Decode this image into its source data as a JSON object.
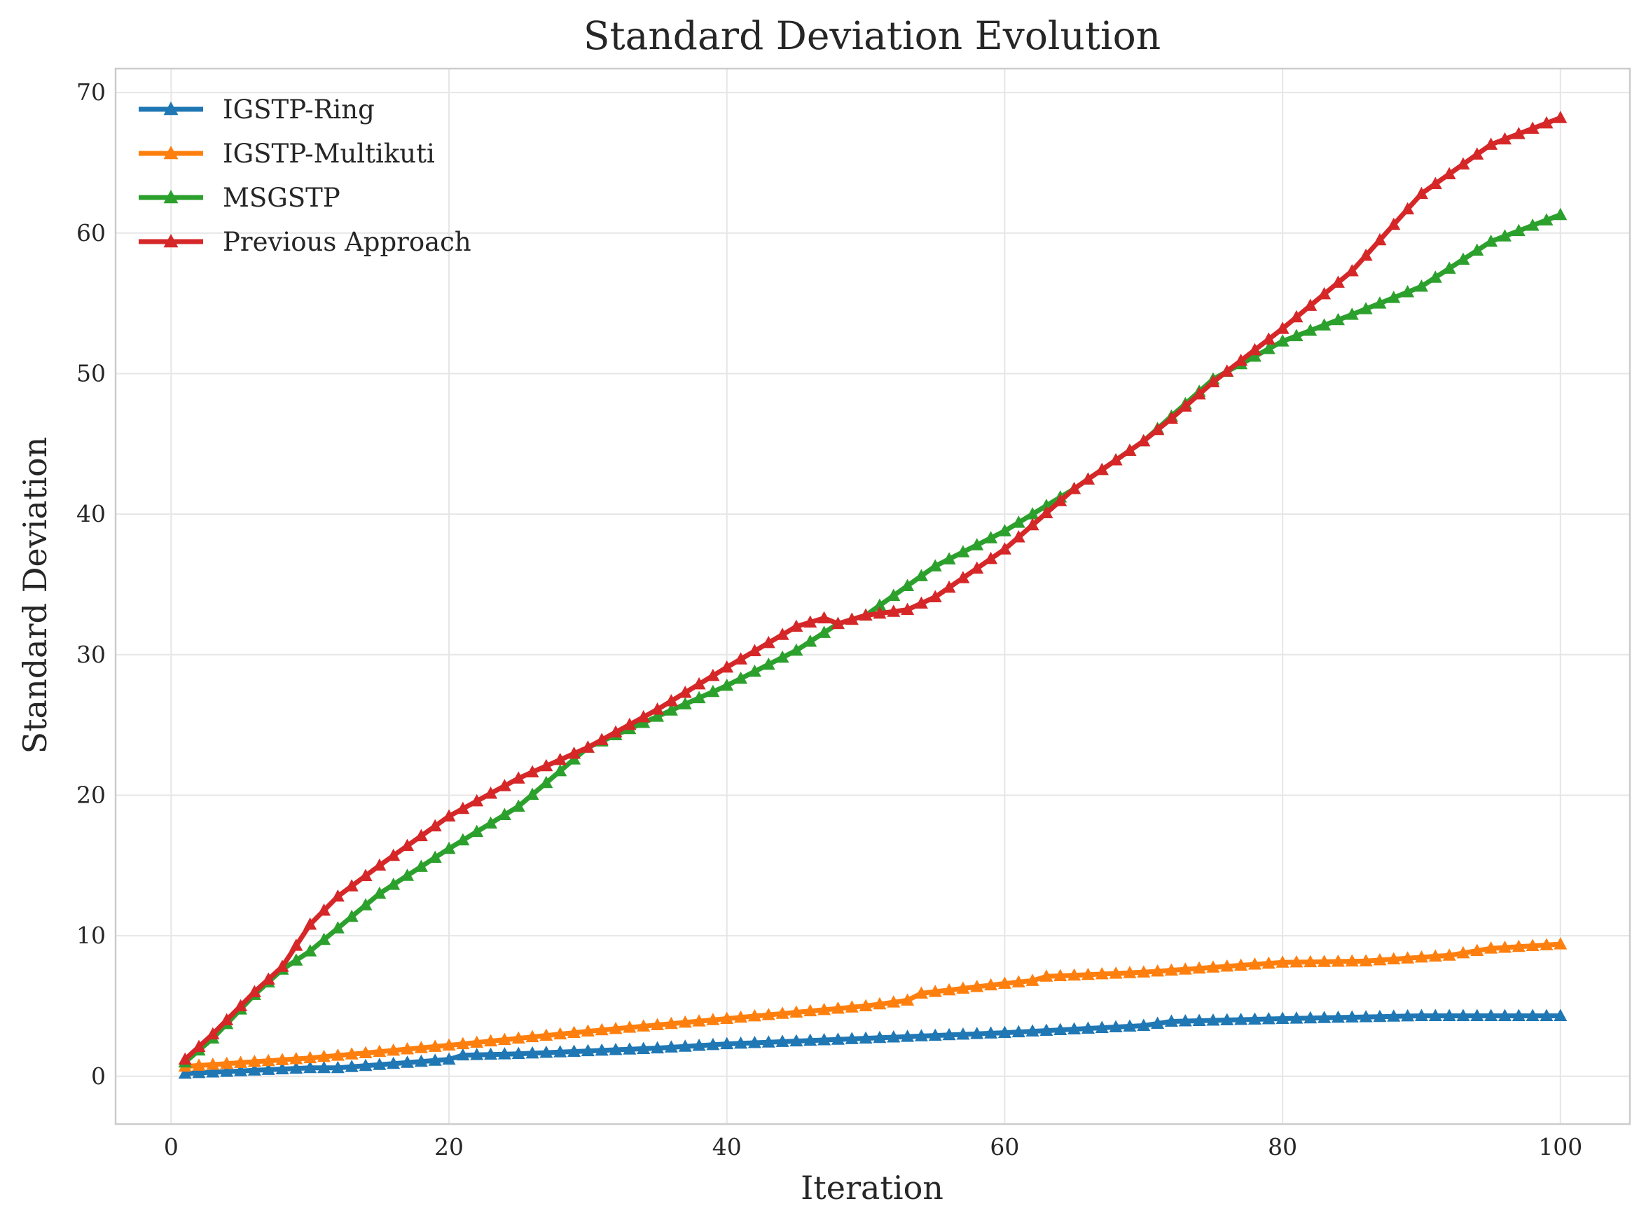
{
  "chart_data": {
    "type": "line",
    "title": "Standard Deviation Evolution",
    "xlabel": "Iteration",
    "ylabel": "Standard Deviation",
    "xlim": [
      -4,
      105
    ],
    "ylim": [
      -3.4,
      71.7
    ],
    "xticks": [
      0,
      20,
      40,
      60,
      80,
      100
    ],
    "yticks": [
      0,
      10,
      20,
      30,
      40,
      50,
      60,
      70
    ],
    "grid": true,
    "legend_position": "top-left",
    "marker": "triangle-up",
    "colors": {
      "IGSTP-Ring": "#1f77b4",
      "IGSTP-Multikuti": "#ff7f0e",
      "MSGSTP": "#2ca02c",
      "Previous Approach": "#d62728"
    },
    "x_points": [
      1,
      100
    ],
    "series": [
      {
        "name": "IGSTP-Ring",
        "knots": [
          [
            1,
            0.2
          ],
          [
            10,
            0.6
          ],
          [
            12,
            0.6
          ],
          [
            20,
            1.2
          ],
          [
            21,
            1.5
          ],
          [
            25,
            1.6
          ],
          [
            30,
            1.8
          ],
          [
            35,
            2.0
          ],
          [
            40,
            2.3
          ],
          [
            50,
            2.7
          ],
          [
            60,
            3.1
          ],
          [
            70,
            3.6
          ],
          [
            72,
            3.9
          ],
          [
            80,
            4.1
          ],
          [
            90,
            4.3
          ],
          [
            100,
            4.3
          ]
        ]
      },
      {
        "name": "IGSTP-Multikuti",
        "knots": [
          [
            1,
            0.7
          ],
          [
            10,
            1.3
          ],
          [
            20,
            2.2
          ],
          [
            30,
            3.2
          ],
          [
            40,
            4.1
          ],
          [
            50,
            5.0
          ],
          [
            53,
            5.4
          ],
          [
            54,
            5.9
          ],
          [
            60,
            6.6
          ],
          [
            62,
            6.8
          ],
          [
            63,
            7.1
          ],
          [
            70,
            7.4
          ],
          [
            80,
            8.1
          ],
          [
            86,
            8.2
          ],
          [
            92,
            8.6
          ],
          [
            95,
            9.1
          ],
          [
            100,
            9.4
          ]
        ]
      },
      {
        "name": "MSGSTP",
        "knots": [
          [
            1,
            1.0
          ],
          [
            3,
            2.7
          ],
          [
            6,
            5.8
          ],
          [
            8,
            7.6
          ],
          [
            10,
            8.9
          ],
          [
            15,
            13.0
          ],
          [
            20,
            16.2
          ],
          [
            25,
            19.2
          ],
          [
            30,
            23.4
          ],
          [
            35,
            25.6
          ],
          [
            40,
            27.8
          ],
          [
            45,
            30.3
          ],
          [
            48,
            32.2
          ],
          [
            50,
            32.8
          ],
          [
            55,
            36.3
          ],
          [
            60,
            38.8
          ],
          [
            65,
            41.8
          ],
          [
            70,
            45.2
          ],
          [
            75,
            49.6
          ],
          [
            80,
            52.3
          ],
          [
            85,
            54.2
          ],
          [
            90,
            56.2
          ],
          [
            95,
            59.4
          ],
          [
            100,
            61.3
          ]
        ]
      },
      {
        "name": "Previous Approach",
        "knots": [
          [
            1,
            1.2
          ],
          [
            3,
            3.0
          ],
          [
            6,
            6.0
          ],
          [
            8,
            7.8
          ],
          [
            10,
            10.8
          ],
          [
            12,
            12.8
          ],
          [
            15,
            15.0
          ],
          [
            20,
            18.5
          ],
          [
            25,
            21.2
          ],
          [
            30,
            23.4
          ],
          [
            35,
            26.1
          ],
          [
            40,
            29.1
          ],
          [
            45,
            32.0
          ],
          [
            47,
            32.6
          ],
          [
            48,
            32.2
          ],
          [
            50,
            32.8
          ],
          [
            53,
            33.2
          ],
          [
            55,
            34.1
          ],
          [
            60,
            37.5
          ],
          [
            65,
            41.8
          ],
          [
            70,
            45.2
          ],
          [
            72,
            46.8
          ],
          [
            75,
            49.4
          ],
          [
            80,
            53.2
          ],
          [
            85,
            57.3
          ],
          [
            90,
            62.8
          ],
          [
            95,
            66.3
          ],
          [
            100,
            68.2
          ]
        ]
      }
    ]
  }
}
